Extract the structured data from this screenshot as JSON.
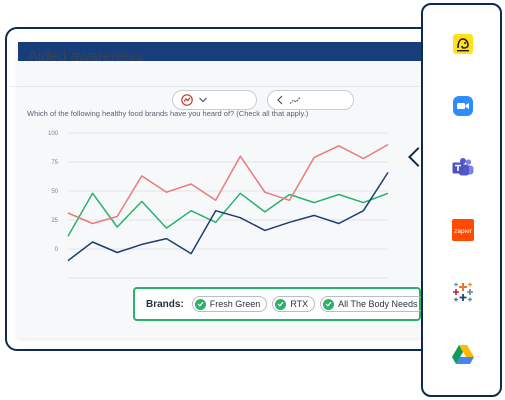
{
  "report": {
    "metric_title": "Aided awareness",
    "question": "Which of the following healthy food brands have you heard of? (Check all that apply.)",
    "chart_type_icon": "chart-type-icon",
    "nav_icon": "back-chevron-icon"
  },
  "chart_data": {
    "type": "line",
    "title": "",
    "xlabel": "",
    "ylabel": "",
    "ylim": [
      -25,
      100
    ],
    "yticks": [
      "100",
      "75",
      "50",
      "25",
      "0"
    ],
    "grid": true,
    "legend": "below",
    "colors": {
      "Fresh Green": "#27b36a",
      "RTX": "#e77c7c",
      "All The Body Needs": "#1c3f73"
    },
    "x": [
      1,
      2,
      3,
      4,
      5,
      6,
      7,
      8,
      9,
      10,
      11,
      12,
      13,
      14
    ],
    "series": [
      {
        "name": "Fresh Green",
        "values": [
          11,
          48,
          19,
          41,
          18,
          33,
          23,
          48,
          32,
          47,
          40,
          47,
          40,
          48
        ]
      },
      {
        "name": "RTX",
        "values": [
          31,
          22,
          28,
          63,
          49,
          56,
          42,
          80,
          49,
          42,
          79,
          89,
          78,
          90
        ]
      },
      {
        "name": "All The Body Needs",
        "values": [
          -10,
          6,
          -3,
          4,
          9,
          -4,
          33,
          27,
          16,
          23,
          29,
          22,
          33,
          66
        ]
      }
    ]
  },
  "legend": {
    "label": "Brands:",
    "chips": [
      "Fresh Green",
      "RTX",
      "All The Body Needs"
    ]
  },
  "dock": {
    "apps": [
      {
        "name": "Mailchimp",
        "bg": "#fdf6dc",
        "icon": "mailchimp-icon"
      },
      {
        "name": "Zoom",
        "bg": "#e3f0fb",
        "icon": "zoom-icon"
      },
      {
        "name": "Microsoft Teams",
        "bg": "#ece9f6",
        "icon": "teams-icon"
      },
      {
        "name": "Zapier",
        "bg": "#f8d7d4",
        "icon": "zapier-icon",
        "text": "zapier"
      },
      {
        "name": "Tableau",
        "bg": "#eef3ef",
        "icon": "tableau-icon"
      },
      {
        "name": "Google Drive",
        "bg": "#e6f1fb",
        "icon": "google-drive-icon"
      }
    ]
  }
}
